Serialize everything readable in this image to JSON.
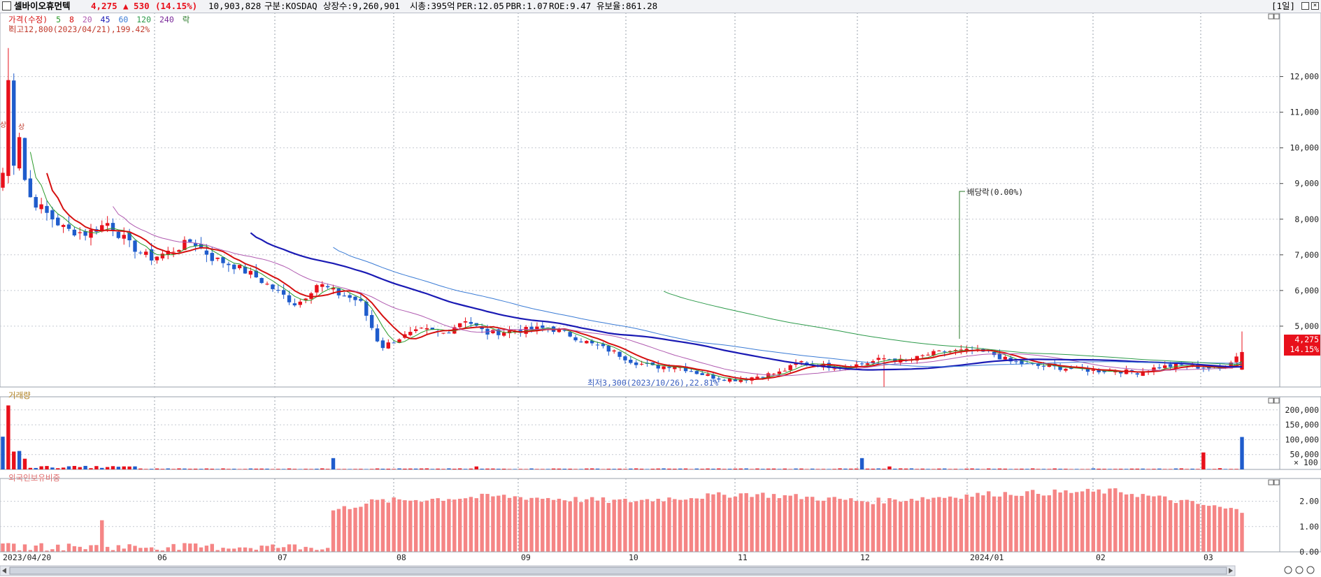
{
  "header": {
    "stock_name": "셀바이오휴먼텍",
    "price": "4,275",
    "change": "▲ 530",
    "change_pct": "(14.15%)",
    "volume": "10,903,828",
    "market": "구분:KOSDAQ",
    "shares": "상장수:9,260,901",
    "market_cap": "시총:395억",
    "per": "PER:12.05",
    "pbr": "PBR:1.07",
    "roe": "ROE:9.47",
    "reserve": "유보율:861.28",
    "period": "[1일]"
  },
  "legend": {
    "price_label": "가격(수정)",
    "ma_labels": [
      "5",
      "8",
      "20",
      "45",
      "60",
      "120",
      "240"
    ],
    "ex_label": "락"
  },
  "annotations": {
    "high": "최고12,800(2023/04/21),199.42%",
    "low": "최저3,300(2023/10/26),22.81%",
    "dividend": "배당락(0.00%)",
    "limit_up": "상"
  },
  "price_box": {
    "value": "4,275",
    "pct": "14.15%"
  },
  "volume_panel": {
    "title": "거래량",
    "unit": "× 100"
  },
  "foreign_panel": {
    "title": "외국인보유비중"
  },
  "colors": {
    "up": "#e8101b",
    "down": "#1f5ccc",
    "ma5": "#2a9a2a",
    "ma8": "#d51010",
    "ma20": "#b05ab0",
    "ma45": "#1a1ab4",
    "ma60": "#3a7bd5",
    "ma120": "#2c9a4a",
    "foreign": "#f58585"
  },
  "chart_data": [
    {
      "type": "candlestick",
      "title": "셀바이오휴먼텍",
      "x_ticks": [
        "2023/04/20",
        "06",
        "07",
        "08",
        "09",
        "10",
        "11",
        "12",
        "2024/01",
        "02",
        "03"
      ],
      "y_ticks": [
        12000,
        11000,
        10000,
        9000,
        8000,
        7000,
        6000,
        5000
      ],
      "ylim": [
        3000,
        13500
      ],
      "weekly_close": [
        9600,
        8800,
        8200,
        7700,
        7600,
        7900,
        7300,
        6900,
        7100,
        7400,
        6900,
        6700,
        6400,
        6000,
        5600,
        6200,
        5900,
        5700,
        4400,
        4700,
        4900,
        4800,
        5200,
        4800,
        4850,
        4900,
        4950,
        4750,
        4500,
        4300,
        4000,
        3850,
        3900,
        3700,
        3550,
        3500,
        3600,
        3700,
        4000,
        3900,
        3850,
        3950,
        4100,
        4000,
        4200,
        4300,
        4300,
        4250,
        4000,
        3900,
        3850,
        3800,
        3750,
        3750,
        3700,
        3850,
        3900,
        3850,
        3800,
        4275
      ],
      "high": {
        "value": 12800,
        "date": "2023/04/21",
        "pct": "199.42%"
      },
      "low": {
        "value": 3300,
        "date": "2023/10/26",
        "pct": "22.81%"
      },
      "last": {
        "value": 4275,
        "change": 530,
        "change_pct": 14.15
      }
    },
    {
      "type": "bar",
      "title": "거래량",
      "y_ticks": [
        200000,
        150000,
        100000,
        50000
      ],
      "ylim": [
        0,
        230000
      ],
      "unit": "× 100",
      "notable": [
        {
          "date": "2023/04/20",
          "value": 110000
        },
        {
          "date": "2023/04/21",
          "value": 215000
        },
        {
          "date": "2023/07/10",
          "value": 38000
        },
        {
          "date": "2023/11/15",
          "value": 38000
        },
        {
          "date": "2024/02/26",
          "value": 57000
        },
        {
          "date": "2024/03/11",
          "value": 109000
        }
      ]
    },
    {
      "type": "bar",
      "title": "외국인보유비중",
      "y_ticks": [
        2.0,
        1.0,
        0.0
      ],
      "ylim": [
        0,
        2.9
      ],
      "monthly_avg": [
        0.3,
        0.3,
        0.9,
        2.0,
        2.2,
        2.0,
        2.3,
        2.0,
        2.3,
        2.4,
        1.6
      ]
    }
  ]
}
